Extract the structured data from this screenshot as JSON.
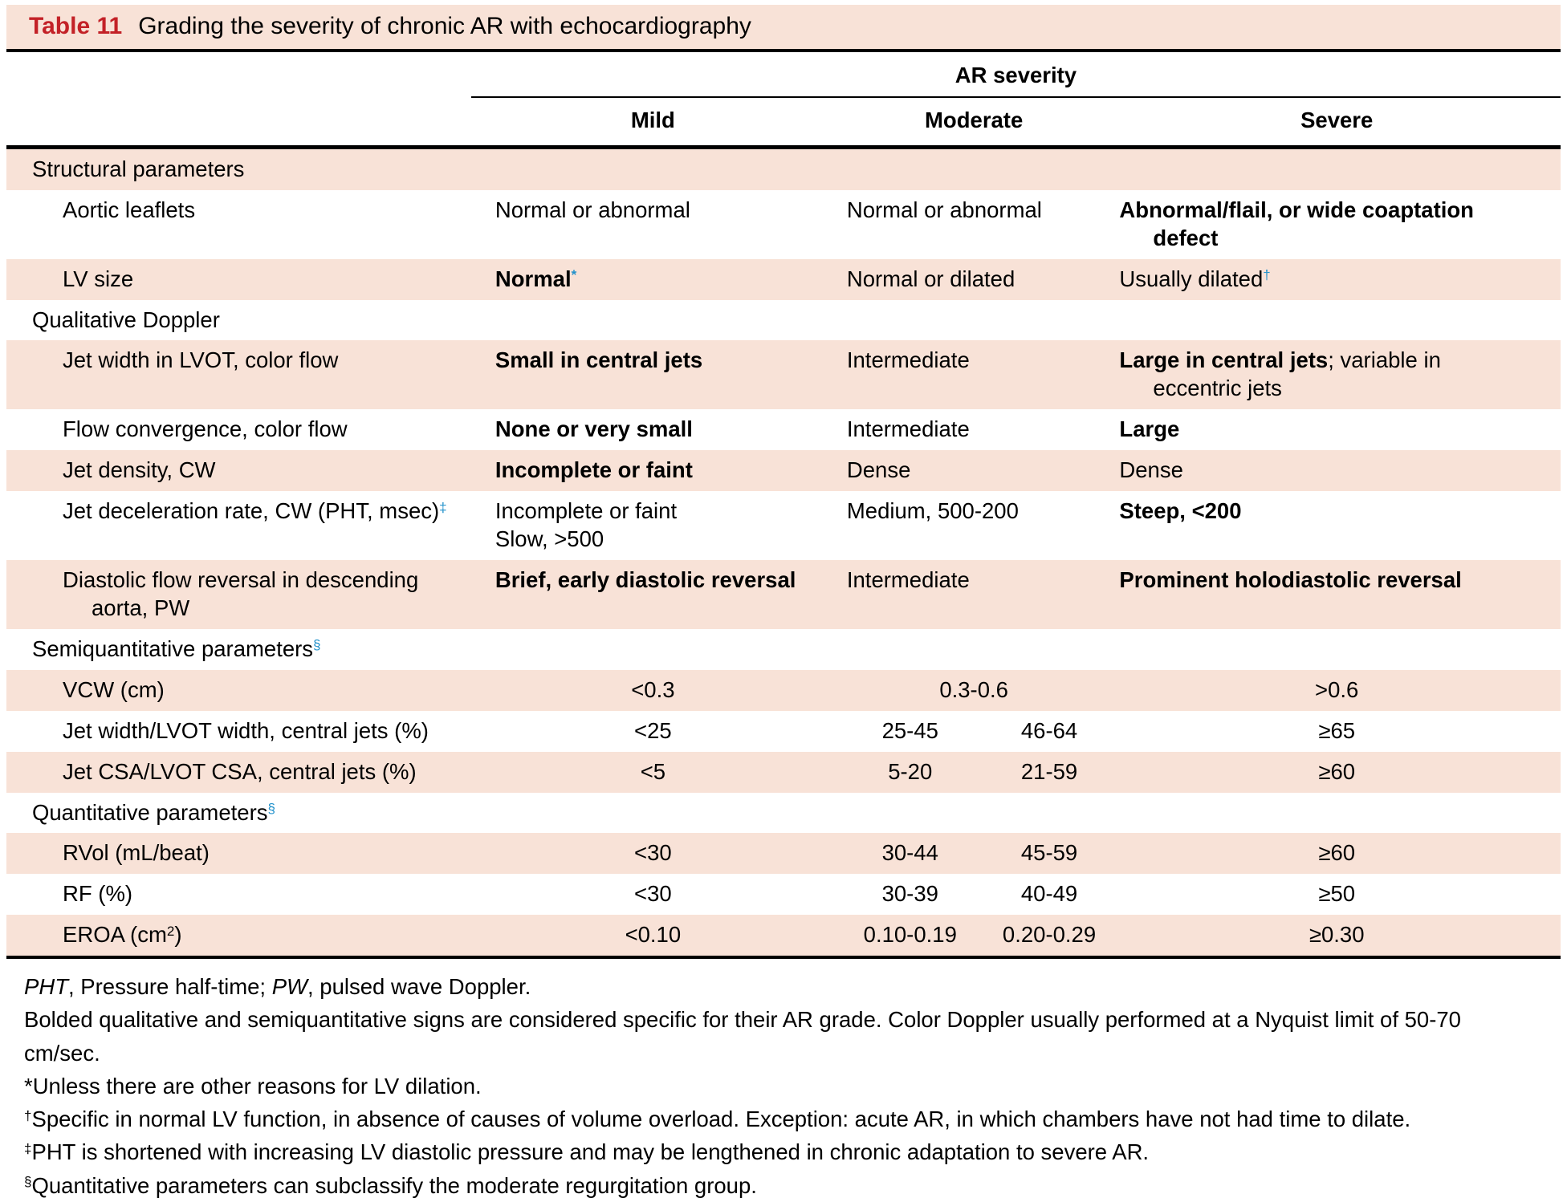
{
  "colors": {
    "pink": "#f8e2d7",
    "red": "#c32127",
    "blue": "#2191cb"
  },
  "title": {
    "tag": "Table 11",
    "text": "Grading the severity of chronic AR with echocardiography"
  },
  "columns": {
    "group": "AR severity",
    "mild": "Mild",
    "moderate": "Moderate",
    "severe": "Severe"
  },
  "rows": {
    "structural": {
      "label": "Structural parameters"
    },
    "aortic": {
      "label": "Aortic leaflets",
      "mild": "Normal or abnormal",
      "moderate": "Normal or abnormal",
      "severe_line1": "Abnormal/flail, or wide coaptation",
      "severe_line2": "defect"
    },
    "lvsize": {
      "label": "LV size",
      "mild": "Normal",
      "mild_sup": "*",
      "moderate": "Normal or dilated",
      "severe": "Usually dilated",
      "severe_sup": "†"
    },
    "qualitative": {
      "label": "Qualitative Doppler"
    },
    "jetwidth": {
      "label": "Jet width in LVOT, color flow",
      "mild": "Small in central jets",
      "moderate": "Intermediate",
      "severe_bold": "Large in central jets",
      "severe_rest": "; variable in",
      "severe_line2": "eccentric jets"
    },
    "flowconv": {
      "label": "Flow convergence, color flow",
      "mild": "None or very small",
      "moderate": "Intermediate",
      "severe": "Large"
    },
    "jetdensity": {
      "label": "Jet density, CW",
      "mild": "Incomplete or faint",
      "moderate": "Dense",
      "severe": "Dense"
    },
    "jetdecel": {
      "label": "Jet deceleration rate, CW (PHT, msec)",
      "label_sup": "‡",
      "mild_line1": "Incomplete or faint",
      "mild_line2": "Slow, >500",
      "moderate": "Medium, 500-200",
      "severe": "Steep, <200"
    },
    "diastolic": {
      "label_line1": "Diastolic flow reversal in descending",
      "label_line2": "aorta, PW",
      "mild": "Brief, early diastolic reversal",
      "moderate": "Intermediate",
      "severe": "Prominent holodiastolic reversal"
    },
    "semiquant": {
      "label": "Semiquantitative parameters",
      "label_sup": "§"
    },
    "vcw": {
      "label": "VCW (cm)",
      "mild": "<0.3",
      "moderate": "0.3-0.6",
      "severe": ">0.6"
    },
    "jetlvotwidth": {
      "label": "Jet width/LVOT width, central jets (%)",
      "mild": "<25",
      "mod_a": "25-45",
      "mod_b": "46-64",
      "severe": "≥65"
    },
    "jetlvotcsa": {
      "label": "Jet CSA/LVOT CSA, central jets (%)",
      "mild": "<5",
      "mod_a": "5-20",
      "mod_b": "21-59",
      "severe": "≥60"
    },
    "quant": {
      "label": "Quantitative parameters",
      "label_sup": "§"
    },
    "rvol": {
      "label": "RVol (mL/beat)",
      "mild": "<30",
      "mod_a": "30-44",
      "mod_b": "45-59",
      "severe": "≥60"
    },
    "rf": {
      "label": "RF (%)",
      "mild": "<30",
      "mod_a": "30-39",
      "mod_b": "40-49",
      "severe": "≥50"
    },
    "eroa": {
      "label_pre": "EROA (cm",
      "label_sup2": "2",
      "label_post": ")",
      "mild": "<0.10",
      "mod_a": "0.10-0.19",
      "mod_b": "0.20-0.29",
      "severe": "≥0.30"
    }
  },
  "footnotes": {
    "abbrev": {
      "i1": "PHT",
      "t1": ", Pressure half-time; ",
      "i2": "PW",
      "t2": ", pulsed wave Doppler."
    },
    "bolded": "Bolded qualitative and semiquantitative signs are considered specific for their AR grade. Color Doppler usually performed at a Nyquist limit of 50-70 cm/sec.",
    "star": "*Unless there are other reasons for LV dilation.",
    "dagger": {
      "sup": "†",
      "text": "Specific in normal LV function, in absence of causes of volume overload. Exception: acute AR, in which chambers have not had time to dilate."
    },
    "ddagger": {
      "sup": "‡",
      "text": "PHT is shortened with increasing LV diastolic pressure and may be lengthened in chronic adaptation to severe AR."
    },
    "section": {
      "sup": "§",
      "text": "Quantitative parameters can subclassify the moderate regurgitation group."
    }
  }
}
